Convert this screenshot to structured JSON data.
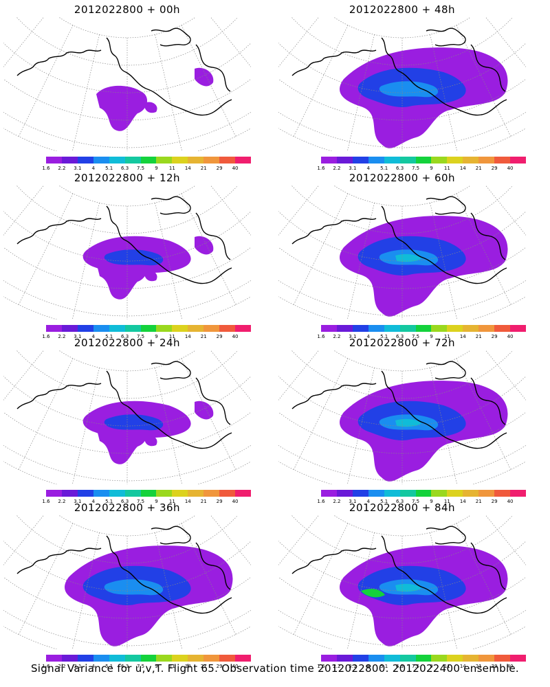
{
  "panels": [
    {
      "title": "2012022800 + 00h",
      "level": 1
    },
    {
      "title": "2012022800 + 48h",
      "level": 3
    },
    {
      "title": "2012022800 + 12h",
      "level": 2
    },
    {
      "title": "2012022800 + 60h",
      "level": 4
    },
    {
      "title": "2012022800 + 24h",
      "level": 2
    },
    {
      "title": "2012022800 + 72h",
      "level": 4
    },
    {
      "title": "2012022800 + 36h",
      "level": 3
    },
    {
      "title": "2012022800 + 84h",
      "level": 5
    }
  ],
  "colorbar": {
    "labels": [
      "1.6",
      "2.2",
      "3.1",
      "4",
      "5.1",
      "6.3",
      "7.5",
      "9",
      "11",
      "14",
      "21",
      "29",
      "40"
    ],
    "colors": [
      "#9a1ee0",
      "#6a1ad8",
      "#2240e6",
      "#1a8ef0",
      "#10bcd8",
      "#14c8a0",
      "#14d23c",
      "#9ad81e",
      "#dcd21e",
      "#e6b432",
      "#f0963c",
      "#f05a3c",
      "#f01e6e"
    ]
  },
  "caption": "Signal Variance for u,v,T. Flight 65. Observation time 2012022800. 2012022400 ensemble."
}
